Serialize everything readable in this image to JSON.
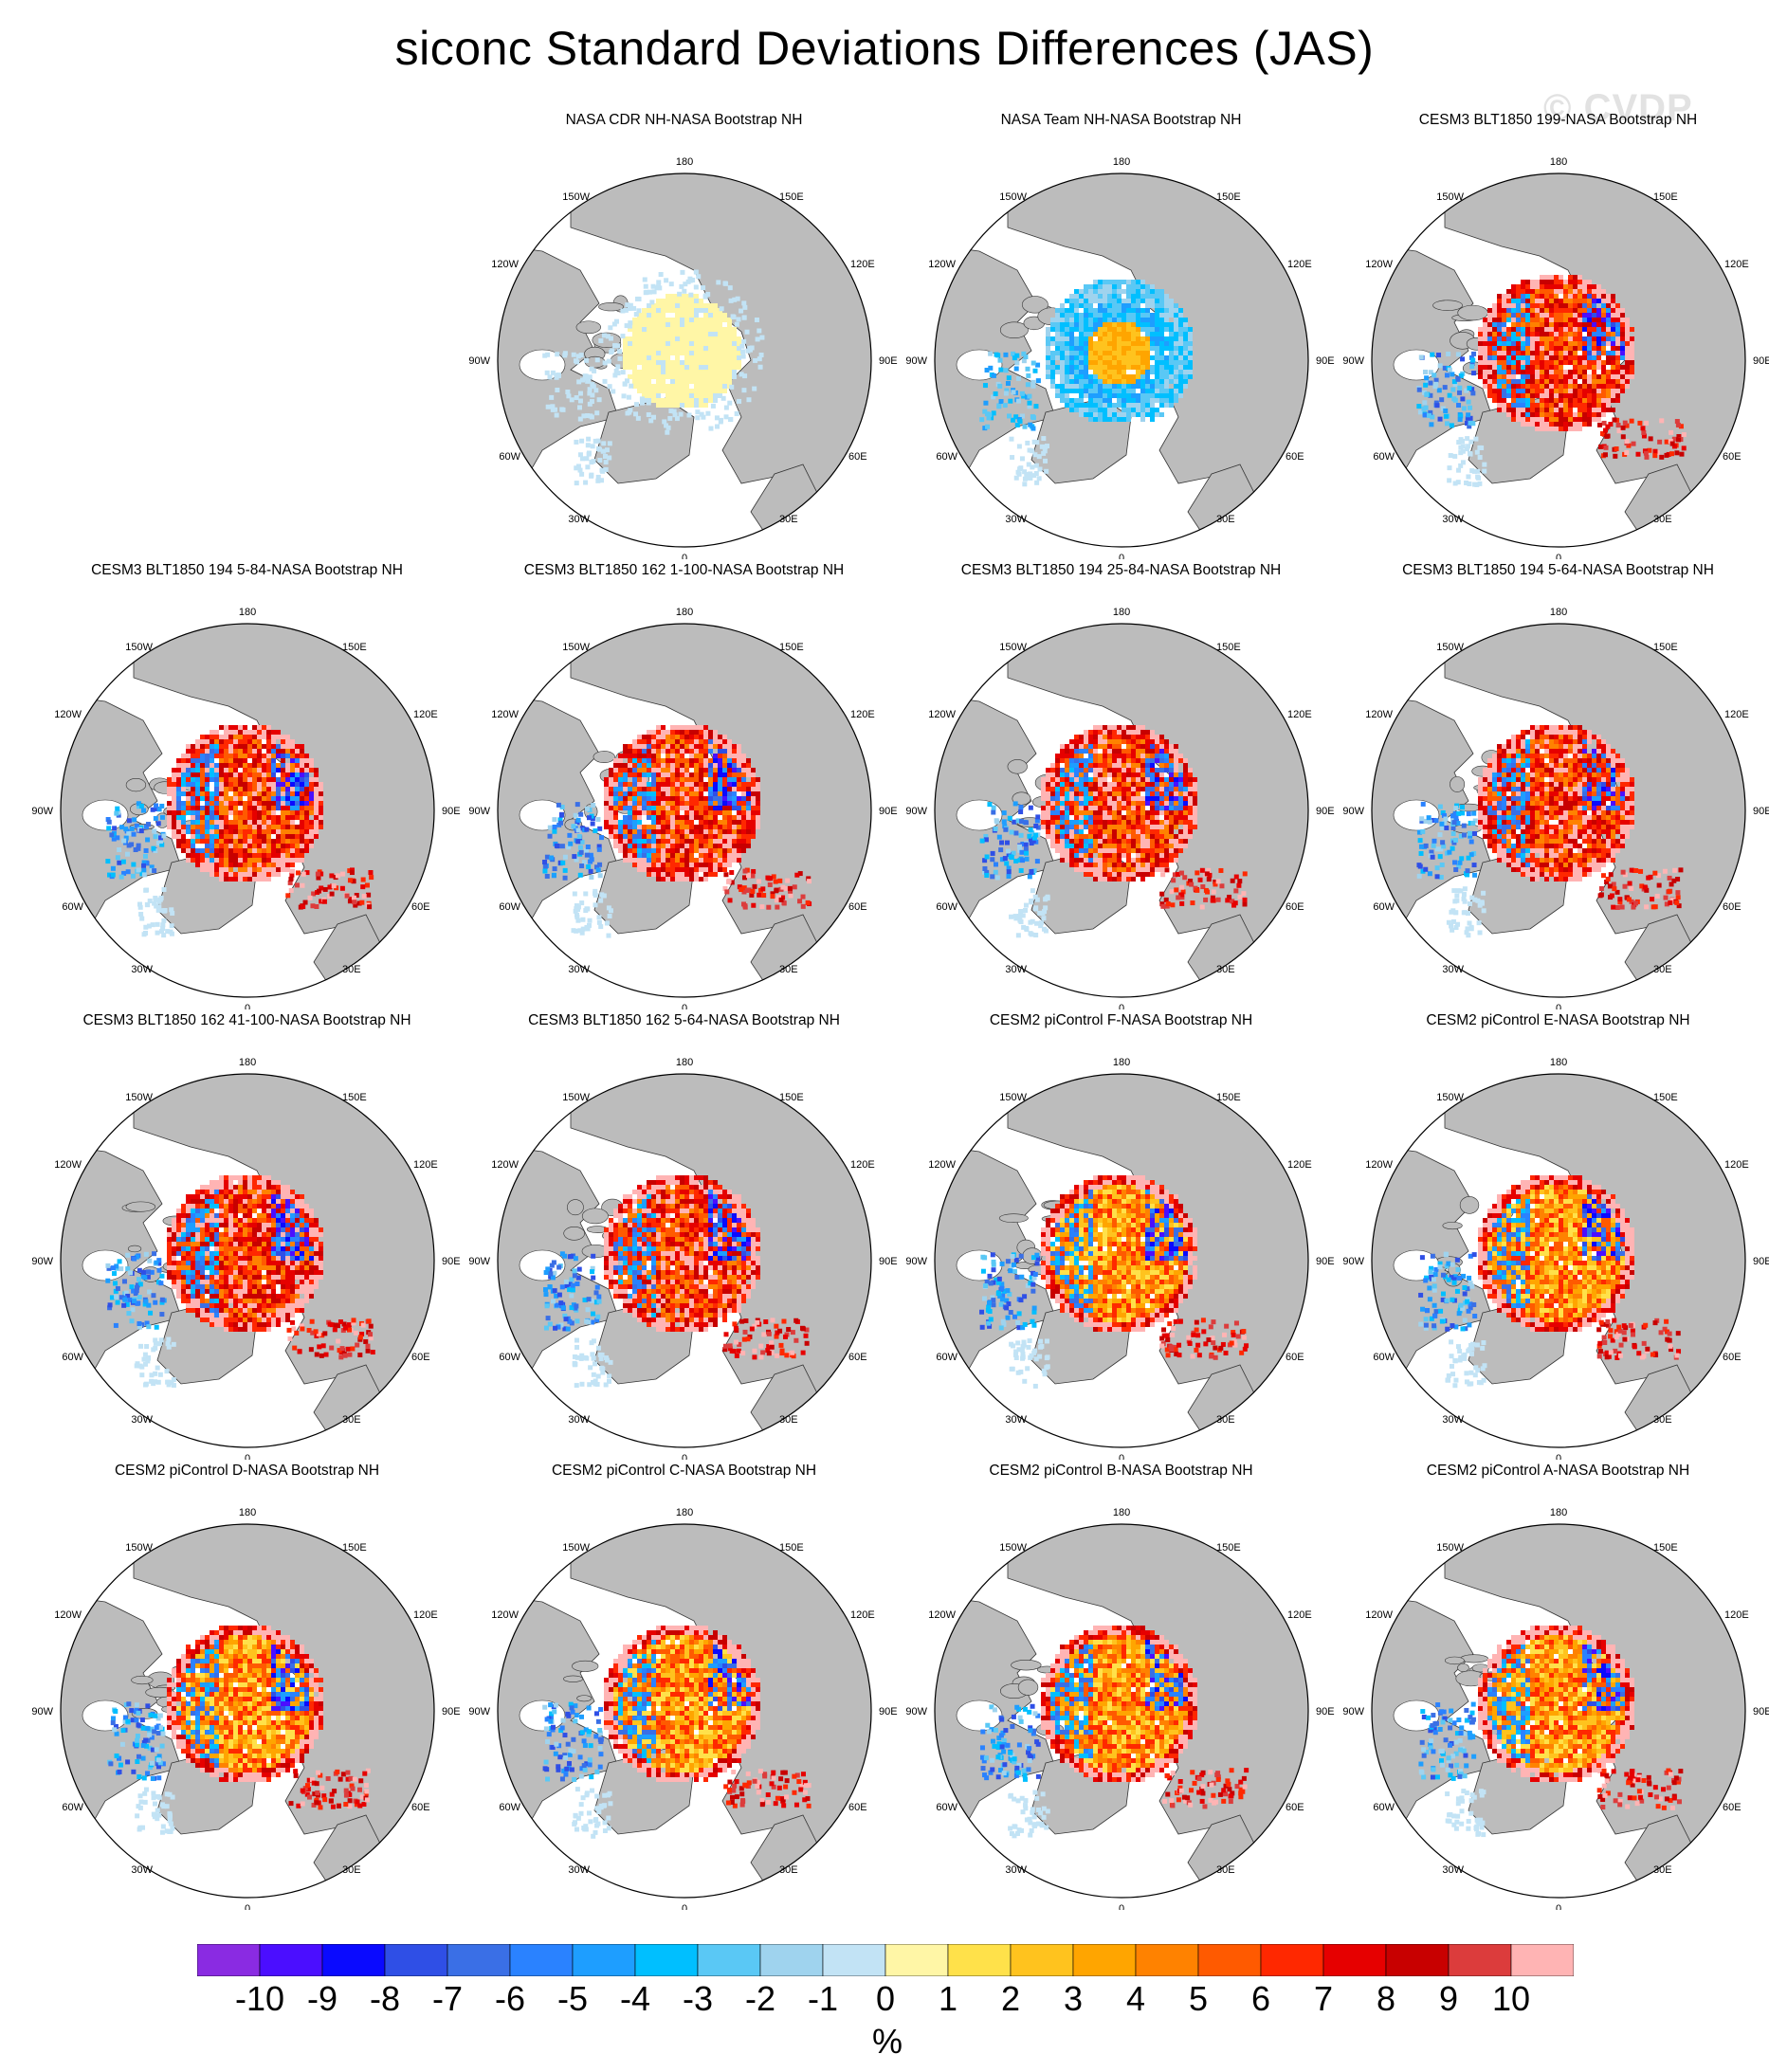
{
  "title": "siconc Standard Deviations Differences (JAS)",
  "watermark": "© CVDP",
  "panels": [
    {
      "title": "",
      "show": false
    },
    {
      "title": "NASA CDR NH-NASA Bootstrap NH",
      "show": true,
      "variant": "cdr"
    },
    {
      "title": "NASA Team NH-NASA Bootstrap NH",
      "show": true,
      "variant": "team"
    },
    {
      "title": "CESM3 BLT1850 199-NASA Bootstrap NH",
      "show": true,
      "variant": "model"
    },
    {
      "title": "CESM3 BLT1850 194 5-84-NASA Bootstrap NH",
      "show": true,
      "variant": "model"
    },
    {
      "title": "CESM3 BLT1850 162 1-100-NASA Bootstrap NH",
      "show": true,
      "variant": "model"
    },
    {
      "title": "CESM3 BLT1850 194 25-84-NASA Bootstrap NH",
      "show": true,
      "variant": "model"
    },
    {
      "title": "CESM3 BLT1850 194 5-64-NASA Bootstrap NH",
      "show": true,
      "variant": "model"
    },
    {
      "title": "CESM3 BLT1850 162 41-100-NASA Bootstrap NH",
      "show": true,
      "variant": "model"
    },
    {
      "title": "CESM3 BLT1850 162 5-64-NASA Bootstrap NH",
      "show": true,
      "variant": "model"
    },
    {
      "title": "CESM2 piControl F-NASA Bootstrap NH",
      "show": true,
      "variant": "model2"
    },
    {
      "title": "CESM2 piControl E-NASA Bootstrap NH",
      "show": true,
      "variant": "model2"
    },
    {
      "title": "CESM2 piControl D-NASA Bootstrap NH",
      "show": true,
      "variant": "model2"
    },
    {
      "title": "CESM2 piControl C-NASA Bootstrap NH",
      "show": true,
      "variant": "model2"
    },
    {
      "title": "CESM2 piControl B-NASA Bootstrap NH",
      "show": true,
      "variant": "model2"
    },
    {
      "title": "CESM2 piControl A-NASA Bootstrap NH",
      "show": true,
      "variant": "model2"
    }
  ],
  "lon_labels": {
    "top": "180",
    "bottom": "0",
    "upper_left": "150W",
    "upper_right": "150E",
    "left_upper": "120W",
    "right_upper": "120E",
    "left": "90W",
    "right": "90E",
    "left_lower": "60W",
    "right_lower": "60E",
    "lower_left": "30W",
    "lower_right": "30E"
  },
  "colorbar": {
    "colors": [
      "#8a2be2",
      "#4b0eff",
      "#0a0aff",
      "#2f4fe6",
      "#3a6fe6",
      "#2a82ff",
      "#1e9eff",
      "#00bfff",
      "#5ac8f5",
      "#9fd3ee",
      "#c2e3f5",
      "#fff6a6",
      "#ffe14a",
      "#ffc31e",
      "#ffa500",
      "#ff8200",
      "#ff5a00",
      "#ff2800",
      "#e60000",
      "#c80000",
      "#dc3c3c",
      "#ffb4b4"
    ],
    "ticks": [
      "-10",
      "-9",
      "-8",
      "-7",
      "-6",
      "-5",
      "-4",
      "-3",
      "-2",
      "-1",
      "0",
      "1",
      "2",
      "3",
      "4",
      "5",
      "6",
      "7",
      "8",
      "9",
      "10"
    ],
    "unit": "%"
  },
  "colors": {
    "land": "#bcbcbc",
    "ocean": "#ffffff",
    "coast": "#333333"
  }
}
